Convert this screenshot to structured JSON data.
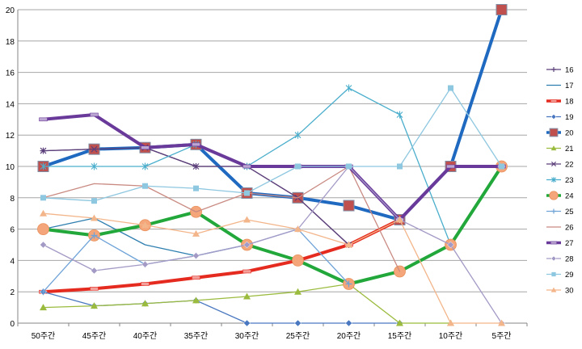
{
  "chart_data": {
    "type": "line",
    "title": "",
    "xlabel": "",
    "ylabel": "",
    "categories": [
      "50주간",
      "45주간",
      "40주간",
      "35주간",
      "30주간",
      "25주간",
      "20주간",
      "15주간",
      "10주간",
      "5주간"
    ],
    "ylim": [
      0,
      20
    ],
    "yticks": [
      0,
      2,
      4,
      6,
      8,
      10,
      12,
      14,
      16,
      18,
      20
    ],
    "grid": true,
    "legend": "right",
    "series": [
      {
        "name": "16",
        "color": "#5b3f7a",
        "marker": "plus",
        "width": 1.3,
        "values": [
          11,
          11.1,
          11.2,
          10,
          10,
          8,
          5,
          null,
          null,
          null
        ]
      },
      {
        "name": "17",
        "color": "#2e7fb0",
        "marker": "none",
        "width": 1.3,
        "values": [
          6,
          6.7,
          5,
          4.3,
          5,
          4,
          2.5,
          null,
          null,
          null
        ]
      },
      {
        "name": "18",
        "color": "#e52b20",
        "marker": "dash",
        "width": 4,
        "values": [
          2,
          2.2,
          2.5,
          2.9,
          3.3,
          4,
          5,
          6.6,
          null,
          null
        ]
      },
      {
        "name": "19",
        "color": "#4a78c0",
        "marker": "diamond",
        "width": 1.3,
        "values": [
          2,
          1.1,
          1.25,
          1.45,
          0,
          0,
          0,
          0,
          null,
          null
        ]
      },
      {
        "name": "20",
        "color": "#1f6ac0",
        "marker": "square-big",
        "width": 4,
        "values": [
          10,
          11.1,
          11.2,
          11.4,
          8.3,
          8,
          7.5,
          6.6,
          10,
          20
        ]
      },
      {
        "name": "21",
        "color": "#9bbb3e",
        "marker": "triangle",
        "width": 1.3,
        "values": [
          1,
          1.1,
          1.25,
          1.45,
          1.7,
          2,
          2.5,
          0,
          0,
          null
        ]
      },
      {
        "name": "22",
        "color": "#5b3f7a",
        "marker": "x",
        "width": 1.3,
        "values": [
          11,
          11.1,
          11.2,
          10,
          10,
          8,
          5,
          null,
          null,
          null
        ]
      },
      {
        "name": "23",
        "color": "#4aaecc",
        "marker": "star",
        "width": 1.3,
        "values": [
          10,
          10,
          10,
          11.4,
          10,
          12,
          15,
          13.3,
          5,
          null
        ]
      },
      {
        "name": "24",
        "color": "#22a83a",
        "marker": "circle-big",
        "width": 4,
        "values": [
          6,
          5.6,
          6.25,
          7.1,
          5,
          4,
          2.5,
          3.3,
          5,
          10
        ]
      },
      {
        "name": "25",
        "color": "#6fa3d8",
        "marker": "plus",
        "width": 1.3,
        "values": [
          2,
          5.6,
          3.75,
          4.3,
          5,
          6,
          2.5,
          null,
          null,
          null
        ]
      },
      {
        "name": "26",
        "color": "#c98a82",
        "marker": "none",
        "width": 1.3,
        "values": [
          8,
          8.9,
          8.75,
          7.1,
          8.3,
          8,
          10,
          3.3,
          null,
          null
        ]
      },
      {
        "name": "27",
        "color": "#6a3a9a",
        "marker": "dash",
        "width": 4,
        "values": [
          13,
          13.3,
          11.2,
          11.4,
          10,
          10,
          10,
          6.6,
          10,
          10
        ]
      },
      {
        "name": "28",
        "color": "#a49ac6",
        "marker": "diamond",
        "width": 1.3,
        "values": [
          5,
          3.35,
          3.75,
          4.3,
          5,
          6,
          10,
          6.6,
          5,
          0
        ]
      },
      {
        "name": "29",
        "color": "#8ec7e0",
        "marker": "square",
        "width": 1.3,
        "values": [
          8,
          7.8,
          8.75,
          8.6,
          8.3,
          10,
          10,
          10,
          15,
          10
        ]
      },
      {
        "name": "30",
        "color": "#f3b58a",
        "marker": "triangle",
        "width": 1.3,
        "values": [
          7,
          6.7,
          6.25,
          5.7,
          6.6,
          6,
          5,
          6.6,
          0,
          0
        ]
      }
    ]
  }
}
